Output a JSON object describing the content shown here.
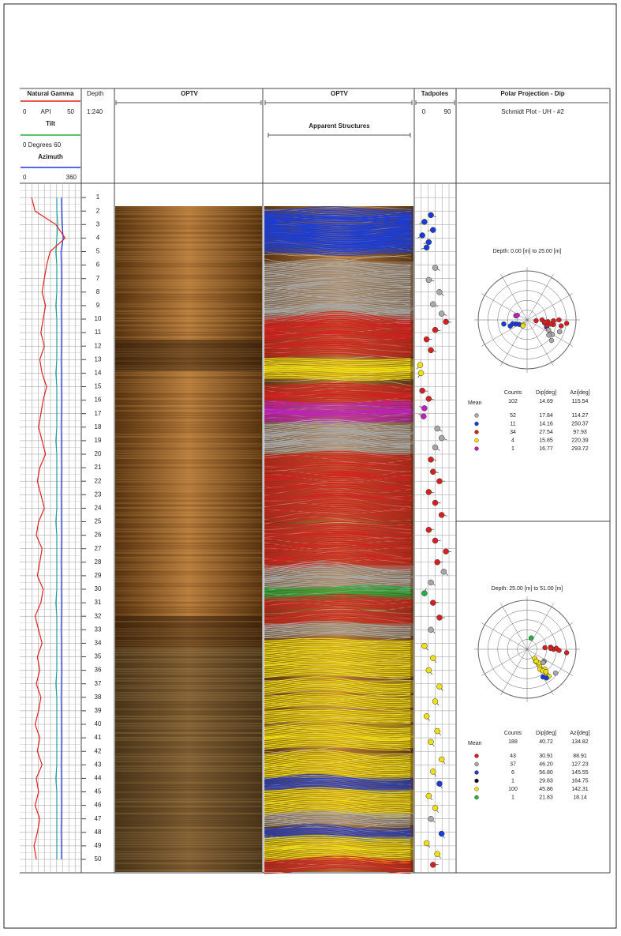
{
  "header": {
    "gamma": {
      "title": "Natural Gamma",
      "min": "0",
      "unit": "API",
      "max": "50"
    },
    "tilt": {
      "title": "Tilt",
      "range": "0 Degrees 60"
    },
    "azimuth": {
      "title": "Azimuth",
      "min": "0",
      "max": "360"
    },
    "depth": {
      "title": "Depth",
      "scale": "1:240"
    },
    "optv1": "OPTV",
    "optv2": "OPTV",
    "structures": "Apparent Structures",
    "tadpoles": {
      "title": "Tadpoles",
      "min": "0",
      "max": "90"
    },
    "polar": {
      "title": "Polar Projection - Dip",
      "subtitle": "Schmidt Plot - UH - #2"
    }
  },
  "depths": [
    1,
    2,
    3,
    4,
    5,
    6,
    7,
    8,
    9,
    10,
    11,
    12,
    13,
    14,
    15,
    16,
    17,
    18,
    19,
    20,
    21,
    22,
    23,
    24,
    25,
    26,
    27,
    28,
    29,
    30,
    31,
    32,
    33,
    34,
    35,
    36,
    37,
    38,
    39,
    40,
    41,
    42,
    43,
    44,
    45,
    46,
    47,
    48,
    49,
    50
  ],
  "gamma": [
    9,
    12,
    30,
    38,
    25,
    22,
    20,
    18,
    21,
    19,
    17,
    20,
    16,
    18,
    22,
    19,
    17,
    15,
    18,
    21,
    16,
    14,
    17,
    20,
    15,
    13,
    18,
    16,
    14,
    19,
    17,
    12,
    15,
    18,
    14,
    16,
    13,
    17,
    15,
    12,
    16,
    14,
    18,
    13,
    15,
    12,
    16,
    14,
    11,
    13
  ],
  "tilt": [
    37,
    37,
    38,
    37,
    36,
    37,
    37,
    37,
    36,
    37,
    37,
    37,
    37,
    36,
    37,
    37,
    37,
    37,
    36,
    37,
    37,
    37,
    37,
    37,
    36,
    37,
    37,
    37,
    37,
    37,
    36,
    37,
    37,
    37,
    37,
    37,
    36,
    37,
    37,
    37,
    37,
    37,
    37,
    36,
    37,
    37,
    37,
    37,
    37,
    37
  ],
  "azimuth": [
    250,
    252,
    255,
    262,
    248,
    250,
    251,
    250,
    249,
    250,
    251,
    250,
    249,
    250,
    250,
    251,
    250,
    249,
    250,
    250,
    251,
    250,
    249,
    250,
    250,
    251,
    250,
    249,
    250,
    250,
    251,
    250,
    249,
    250,
    250,
    251,
    250,
    249,
    250,
    250,
    251,
    250,
    249,
    250,
    250,
    251,
    250,
    249,
    250,
    250
  ],
  "tadpoles": [
    {
      "depth": 2.3,
      "dip": 35,
      "azi": 110,
      "color": "#1a3cd6"
    },
    {
      "depth": 2.8,
      "dip": 20,
      "azi": 250,
      "color": "#1a3cd6"
    },
    {
      "depth": 3.4,
      "dip": 40,
      "azi": 260,
      "color": "#1a3cd6"
    },
    {
      "depth": 3.8,
      "dip": 15,
      "azi": 240,
      "color": "#1a3cd6"
    },
    {
      "depth": 4.3,
      "dip": 30,
      "azi": 250,
      "color": "#1a3cd6"
    },
    {
      "depth": 4.7,
      "dip": 25,
      "azi": 255,
      "color": "#1a3cd6"
    },
    {
      "depth": 6.2,
      "dip": 45,
      "azi": 120,
      "color": "#a8a8a8"
    },
    {
      "depth": 7.1,
      "dip": 30,
      "azi": 100,
      "color": "#a8a8a8"
    },
    {
      "depth": 8.0,
      "dip": 55,
      "azi": 130,
      "color": "#a8a8a8"
    },
    {
      "depth": 8.9,
      "dip": 40,
      "azi": 115,
      "color": "#a8a8a8"
    },
    {
      "depth": 9.6,
      "dip": 60,
      "azi": 110,
      "color": "#a8a8a8"
    },
    {
      "depth": 10.2,
      "dip": 70,
      "azi": 95,
      "color": "#d42020"
    },
    {
      "depth": 10.8,
      "dip": 45,
      "azi": 100,
      "color": "#d42020"
    },
    {
      "depth": 11.5,
      "dip": 25,
      "azi": 90,
      "color": "#d42020"
    },
    {
      "depth": 12.3,
      "dip": 35,
      "azi": 105,
      "color": "#d42020"
    },
    {
      "depth": 13.4,
      "dip": 10,
      "azi": 220,
      "color": "#f0e010"
    },
    {
      "depth": 14.0,
      "dip": 12,
      "azi": 215,
      "color": "#f0e010"
    },
    {
      "depth": 15.3,
      "dip": 15,
      "azi": 95,
      "color": "#d42020"
    },
    {
      "depth": 15.9,
      "dip": 30,
      "azi": 100,
      "color": "#d42020"
    },
    {
      "depth": 16.6,
      "dip": 20,
      "azi": 290,
      "color": "#c020c0"
    },
    {
      "depth": 17.2,
      "dip": 18,
      "azi": 295,
      "color": "#c020c0"
    },
    {
      "depth": 18.1,
      "dip": 50,
      "azi": 120,
      "color": "#a8a8a8"
    },
    {
      "depth": 18.8,
      "dip": 60,
      "azi": 110,
      "color": "#a8a8a8"
    },
    {
      "depth": 19.5,
      "dip": 45,
      "azi": 125,
      "color": "#a8a8a8"
    },
    {
      "depth": 20.4,
      "dip": 35,
      "azi": 95,
      "color": "#d42020"
    },
    {
      "depth": 21.3,
      "dip": 40,
      "azi": 100,
      "color": "#d42020"
    },
    {
      "depth": 22.0,
      "dip": 55,
      "azi": 90,
      "color": "#d42020"
    },
    {
      "depth": 22.8,
      "dip": 30,
      "azi": 98,
      "color": "#d42020"
    },
    {
      "depth": 23.6,
      "dip": 45,
      "azi": 92,
      "color": "#d42020"
    },
    {
      "depth": 24.5,
      "dip": 60,
      "azi": 100,
      "color": "#d42020"
    },
    {
      "depth": 25.6,
      "dip": 30,
      "azi": 85,
      "color": "#d42020"
    },
    {
      "depth": 26.4,
      "dip": 45,
      "azi": 90,
      "color": "#d42020"
    },
    {
      "depth": 27.2,
      "dip": 70,
      "azi": 95,
      "color": "#d42020"
    },
    {
      "depth": 28.0,
      "dip": 50,
      "azi": 88,
      "color": "#d42020"
    },
    {
      "depth": 28.7,
      "dip": 65,
      "azi": 130,
      "color": "#a8a8a8"
    },
    {
      "depth": 29.5,
      "dip": 35,
      "azi": 125,
      "color": "#a8a8a8"
    },
    {
      "depth": 30.3,
      "dip": 20,
      "azi": 20,
      "color": "#20b040"
    },
    {
      "depth": 31.0,
      "dip": 40,
      "azi": 85,
      "color": "#d42020"
    },
    {
      "depth": 32.1,
      "dip": 55,
      "azi": 92,
      "color": "#d42020"
    },
    {
      "depth": 33.0,
      "dip": 35,
      "azi": 128,
      "color": "#a8a8a8"
    },
    {
      "depth": 34.2,
      "dip": 20,
      "azi": 140,
      "color": "#f0e010"
    },
    {
      "depth": 35.1,
      "dip": 40,
      "azi": 145,
      "color": "#f0e010"
    },
    {
      "depth": 36.0,
      "dip": 30,
      "azi": 140,
      "color": "#f0e010"
    },
    {
      "depth": 37.2,
      "dip": 55,
      "azi": 142,
      "color": "#f0e010"
    },
    {
      "depth": 38.3,
      "dip": 45,
      "azi": 138,
      "color": "#f0e010"
    },
    {
      "depth": 39.4,
      "dip": 25,
      "azi": 145,
      "color": "#f0e010"
    },
    {
      "depth": 40.5,
      "dip": 50,
      "azi": 140,
      "color": "#f0e010"
    },
    {
      "depth": 41.3,
      "dip": 35,
      "azi": 143,
      "color": "#f0e010"
    },
    {
      "depth": 42.6,
      "dip": 60,
      "azi": 141,
      "color": "#f0e010"
    },
    {
      "depth": 43.5,
      "dip": 40,
      "azi": 147,
      "color": "#f0e010"
    },
    {
      "depth": 44.4,
      "dip": 55,
      "azi": 150,
      "color": "#1a3cd6"
    },
    {
      "depth": 45.3,
      "dip": 30,
      "azi": 139,
      "color": "#f0e010"
    },
    {
      "depth": 46.2,
      "dip": 45,
      "azi": 144,
      "color": "#f0e010"
    },
    {
      "depth": 47.0,
      "dip": 35,
      "azi": 130,
      "color": "#a8a8a8"
    },
    {
      "depth": 48.1,
      "dip": 60,
      "azi": 146,
      "color": "#1a3cd6"
    },
    {
      "depth": 48.8,
      "dip": 25,
      "azi": 142,
      "color": "#f0e010"
    },
    {
      "depth": 49.6,
      "dip": 50,
      "azi": 140,
      "color": "#f0e010"
    },
    {
      "depth": 50.4,
      "dip": 40,
      "azi": 88,
      "color": "#d42020"
    }
  ],
  "stereonets": [
    {
      "caption": "Depth: 0.00 [m] to 25.00 [m]",
      "columns": [
        "Counts",
        "Dip[deg]",
        "Azi[deg]"
      ],
      "mean": {
        "label": "Mean",
        "counts": "102",
        "dip": "14.69",
        "azi": "115.54"
      },
      "sets": [
        {
          "color": "#a8a8a8",
          "counts": "52",
          "dip": "17.84",
          "azi": "114.27"
        },
        {
          "color": "#1a3cd6",
          "counts": "11",
          "dip": "14.16",
          "azi": "250.37"
        },
        {
          "color": "#d42020",
          "counts": "34",
          "dip": "27.54",
          "azi": "97.93"
        },
        {
          "color": "#f0e010",
          "counts": "4",
          "dip": "15.85",
          "azi": "220.39"
        },
        {
          "color": "#c020c0",
          "counts": "1",
          "dip": "16.77",
          "azi": "293.72"
        }
      ]
    },
    {
      "caption": "Depth: 25.00 [m] to 51.00 [m]",
      "columns": [
        "Counts",
        "Dip[deg]",
        "Azi[deg]"
      ],
      "mean": {
        "label": "Mean",
        "counts": "188",
        "dip": "40.72",
        "azi": "134.82"
      },
      "sets": [
        {
          "color": "#d42020",
          "counts": "43",
          "dip": "30.91",
          "azi": "88.91"
        },
        {
          "color": "#a8a8a8",
          "counts": "37",
          "dip": "46.20",
          "azi": "127.23"
        },
        {
          "color": "#1a3cd6",
          "counts": "6",
          "dip": "56.80",
          "azi": "145.55"
        },
        {
          "color": "#111111",
          "counts": "1",
          "dip": "29.83",
          "azi": "164.75"
        },
        {
          "color": "#f0e010",
          "counts": "100",
          "dip": "45.86",
          "azi": "142.31"
        },
        {
          "color": "#20b040",
          "counts": "1",
          "dip": "21.83",
          "azi": "18.14"
        }
      ]
    }
  ]
}
